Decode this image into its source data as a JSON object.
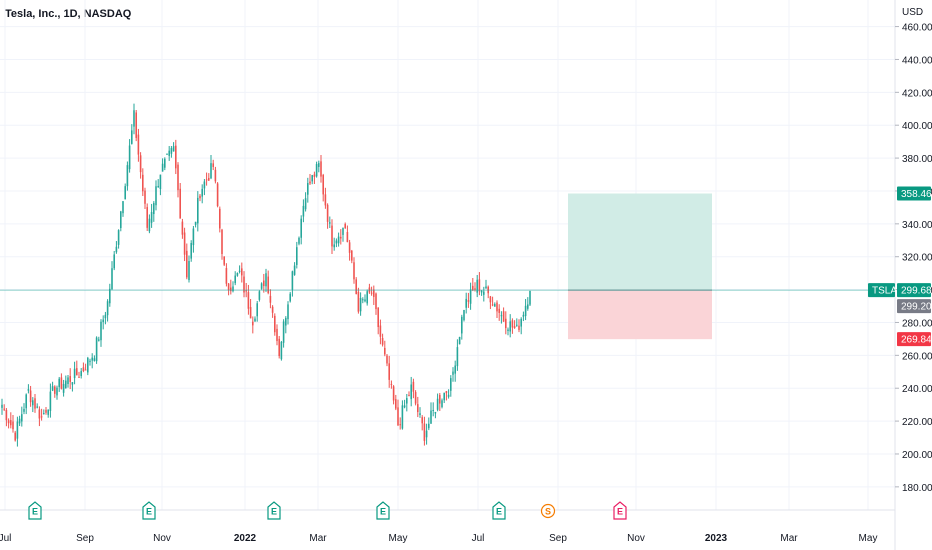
{
  "header": {
    "title": "Tesla, Inc., 1D, NASDAQ"
  },
  "axis": {
    "currency": "USD"
  },
  "colors": {
    "up": "#26a69a",
    "down": "#ef5350",
    "profit_zone": "#d1ece6",
    "loss_zone": "#fad4d7",
    "grid": "#f0f3fa",
    "axis_line": "#e0e3eb",
    "price_line": "#26a69a",
    "earnings": "#089981",
    "split": "#f57c00",
    "future_earnings": "#e91e63"
  },
  "badges": {
    "target": {
      "value": "358.46",
      "color": "#089981"
    },
    "ticker": {
      "label": "TSLA",
      "value": "299.68",
      "color": "#089981"
    },
    "last": {
      "value": "299.20",
      "color": "#787b86"
    },
    "stop": {
      "value": "269.84",
      "color": "#f23645"
    }
  },
  "events": [
    {
      "label": "E",
      "kind": "earnings",
      "date": "Jul 26, 2021"
    },
    {
      "label": "E",
      "kind": "earnings",
      "date": "Oct 20, 2021"
    },
    {
      "label": "E",
      "kind": "earnings",
      "date": "Jan 26, 2022"
    },
    {
      "label": "E",
      "kind": "earnings",
      "date": "Apr 20, 2022"
    },
    {
      "label": "E",
      "kind": "earnings",
      "date": "Jul 20, 2022"
    },
    {
      "label": "S",
      "kind": "split",
      "date": "Aug 25, 2022"
    },
    {
      "label": "E",
      "kind": "future_earnings",
      "date": "Oct 19, 2022"
    }
  ],
  "chart_data": {
    "type": "candlestick",
    "title": "Tesla, Inc., 1D, NASDAQ",
    "ylabel": "USD",
    "ylim": [
      172,
      464
    ],
    "y_ticks": [
      "180.00",
      "200.00",
      "220.00",
      "240.00",
      "260.00",
      "280.00",
      "300.00",
      "320.00",
      "340.00",
      "360.00",
      "380.00",
      "400.00",
      "420.00",
      "440.00",
      "460.00"
    ],
    "x_ticks": [
      {
        "label": "Jul"
      },
      {
        "label": "Sep"
      },
      {
        "label": "Nov"
      },
      {
        "label": "2022",
        "bold": true
      },
      {
        "label": "Mar"
      },
      {
        "label": "May"
      },
      {
        "label": "Jul"
      },
      {
        "label": "Sep"
      },
      {
        "label": "Nov"
      },
      {
        "label": "2023",
        "bold": true
      },
      {
        "label": "Mar"
      },
      {
        "label": "May"
      }
    ],
    "anchors": [
      [
        "Jul 2021",
        230
      ],
      [
        "Jul 2021",
        212
      ],
      [
        "Aug 2021",
        238
      ],
      [
        "Aug 2021",
        222
      ],
      [
        "Aug 2021",
        240
      ],
      [
        "Sep 2021",
        245
      ],
      [
        "Sep 2021",
        250
      ],
      [
        "Oct 2021",
        262
      ],
      [
        "Oct 2021",
        292
      ],
      [
        "Oct 2021",
        348
      ],
      [
        "Nov 2021",
        405
      ],
      [
        "Nov 2021",
        338
      ],
      [
        "Nov 2021",
        372
      ],
      [
        "Nov 2021",
        385
      ],
      [
        "Dec 2021",
        310
      ],
      [
        "Dec 2021",
        360
      ],
      [
        "Jan 2022",
        375
      ],
      [
        "Jan 2022",
        300
      ],
      [
        "Jan 2022",
        310
      ],
      [
        "Feb 2022",
        282
      ],
      [
        "Feb 2022",
        310
      ],
      [
        "Feb 2022",
        262
      ],
      [
        "Mar 2022",
        310
      ],
      [
        "Mar 2022",
        360
      ],
      [
        "Apr 2022",
        375
      ],
      [
        "Apr 2022",
        330
      ],
      [
        "Apr 2022",
        338
      ],
      [
        "Apr 2022",
        290
      ],
      [
        "May 2022",
        298
      ],
      [
        "May 2022",
        258
      ],
      [
        "May 2022",
        218
      ],
      [
        "Jun 2022",
        240
      ],
      [
        "Jun 2022",
        212
      ],
      [
        "Jul 2022",
        232
      ],
      [
        "Jul 2022",
        242
      ],
      [
        "Jul 2022",
        290
      ],
      [
        "Aug 2022",
        303
      ],
      [
        "Aug 2022",
        296
      ],
      [
        "Aug 2022",
        282
      ],
      [
        "Sep 2022",
        275
      ],
      [
        "Sep 2022",
        299.2
      ]
    ],
    "position": {
      "type": "long",
      "entry": 299.68,
      "target": 358.46,
      "stop": 269.84
    }
  }
}
